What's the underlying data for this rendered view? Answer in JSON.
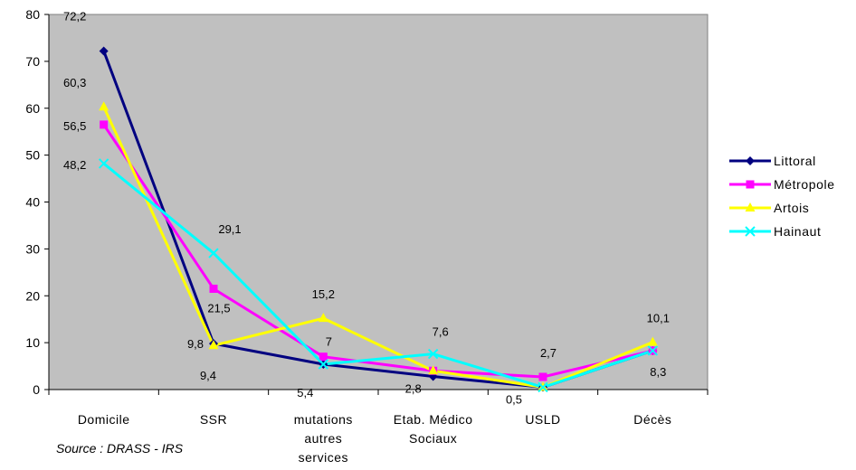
{
  "chart_data": {
    "type": "line",
    "categories": [
      [
        "Domicile"
      ],
      [
        "SSR"
      ],
      [
        "mutations",
        "autres",
        "services"
      ],
      [
        "Etab. Médico",
        "Sociaux"
      ],
      [
        "USLD"
      ],
      [
        "Décès"
      ]
    ],
    "ylim": [
      0,
      80
    ],
    "yticks": [
      0,
      10,
      20,
      30,
      40,
      50,
      60,
      70,
      80
    ],
    "grid": false,
    "legend_position": "right",
    "series": [
      {
        "name": "Littoral",
        "color": "#000080",
        "marker": "diamond",
        "values": [
          72.2,
          9.8,
          5.4,
          2.8,
          0.5,
          8.3
        ]
      },
      {
        "name": "Métropole",
        "color": "#ff00ff",
        "marker": "square",
        "values": [
          56.5,
          21.5,
          7,
          4,
          2.7,
          8.3
        ]
      },
      {
        "name": "Artois",
        "color": "#ffff00",
        "marker": "triangle",
        "values": [
          60.3,
          9.4,
          15.2,
          4,
          0.5,
          10.1
        ]
      },
      {
        "name": "Hainaut",
        "color": "#00ffff",
        "marker": "x",
        "values": [
          48.2,
          29.1,
          5.4,
          7.6,
          0.5,
          8.3
        ]
      }
    ],
    "data_labels": [
      {
        "text": "72,2",
        "cat": 0,
        "value": 72.2
      },
      {
        "text": "60,3",
        "cat": 0,
        "value": 60.3
      },
      {
        "text": "56,5",
        "cat": 0,
        "value": 56.5
      },
      {
        "text": "48,2",
        "cat": 0,
        "value": 48.2
      },
      {
        "text": "29,1",
        "cat": 1,
        "value": 29.1
      },
      {
        "text": "21,5",
        "cat": 1,
        "value": 21.5
      },
      {
        "text": "9,8",
        "cat": 1,
        "value": 9.8
      },
      {
        "text": "9,4",
        "cat": 1,
        "value": 9.4
      },
      {
        "text": "15,2",
        "cat": 2,
        "value": 15.2
      },
      {
        "text": "7",
        "cat": 2,
        "value": 7
      },
      {
        "text": "5,4",
        "cat": 2,
        "value": 5.4
      },
      {
        "text": "7,6",
        "cat": 3,
        "value": 7.6
      },
      {
        "text": "2,8",
        "cat": 3,
        "value": 2.8
      },
      {
        "text": "2,7",
        "cat": 4,
        "value": 2.7
      },
      {
        "text": "0,5",
        "cat": 4,
        "value": 0.5
      },
      {
        "text": "10,1",
        "cat": 5,
        "value": 10.1
      },
      {
        "text": "8,3",
        "cat": 5,
        "value": 8.3
      }
    ],
    "colors": {
      "plot_background": "#c0c0c0",
      "axis": "#000000"
    }
  },
  "source": "Source : DRASS - IRS"
}
